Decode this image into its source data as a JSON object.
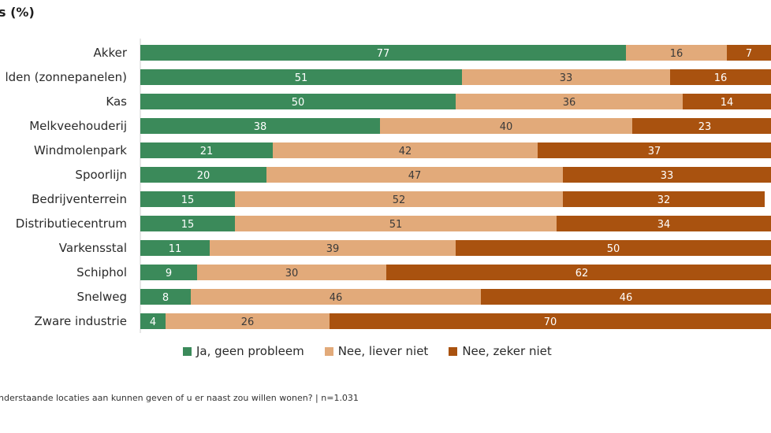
{
  "title": "s (%)",
  "footnote": "nderstaande locaties aan kunnen geven of u er naast zou willen wonen? | n=1.031",
  "colors": {
    "ja": "#3b8a5a",
    "liever_niet": "#e2aa7a",
    "zeker_niet": "#a9520f",
    "axis": "#cfcfcf"
  },
  "chart_data": {
    "type": "bar",
    "orientation": "horizontal",
    "stacked": true,
    "title": "s (%)",
    "xlim": [
      0,
      100
    ],
    "categories": [
      "Akker",
      "lden (zonnepanelen)",
      "Kas",
      "Melkveehouderij",
      "Windmolenpark",
      "Spoorlijn",
      "Bedrijventerrein",
      "Distributiecentrum",
      "Varkensstal",
      "Schiphol",
      "Snelweg",
      "Zware industrie"
    ],
    "series": [
      {
        "name": "Ja, geen probleem",
        "color": "#3b8a5a",
        "values": [
          77,
          51,
          50,
          38,
          21,
          20,
          15,
          15,
          11,
          9,
          8,
          4
        ]
      },
      {
        "name": "Nee, liever niet",
        "color": "#e2aa7a",
        "values": [
          16,
          33,
          36,
          40,
          42,
          47,
          52,
          51,
          39,
          30,
          46,
          26
        ]
      },
      {
        "name": "Nee, zeker niet",
        "color": "#a9520f",
        "values": [
          7,
          16,
          14,
          23,
          37,
          33,
          32,
          34,
          50,
          62,
          46,
          70
        ]
      }
    ],
    "legend_position": "bottom"
  }
}
